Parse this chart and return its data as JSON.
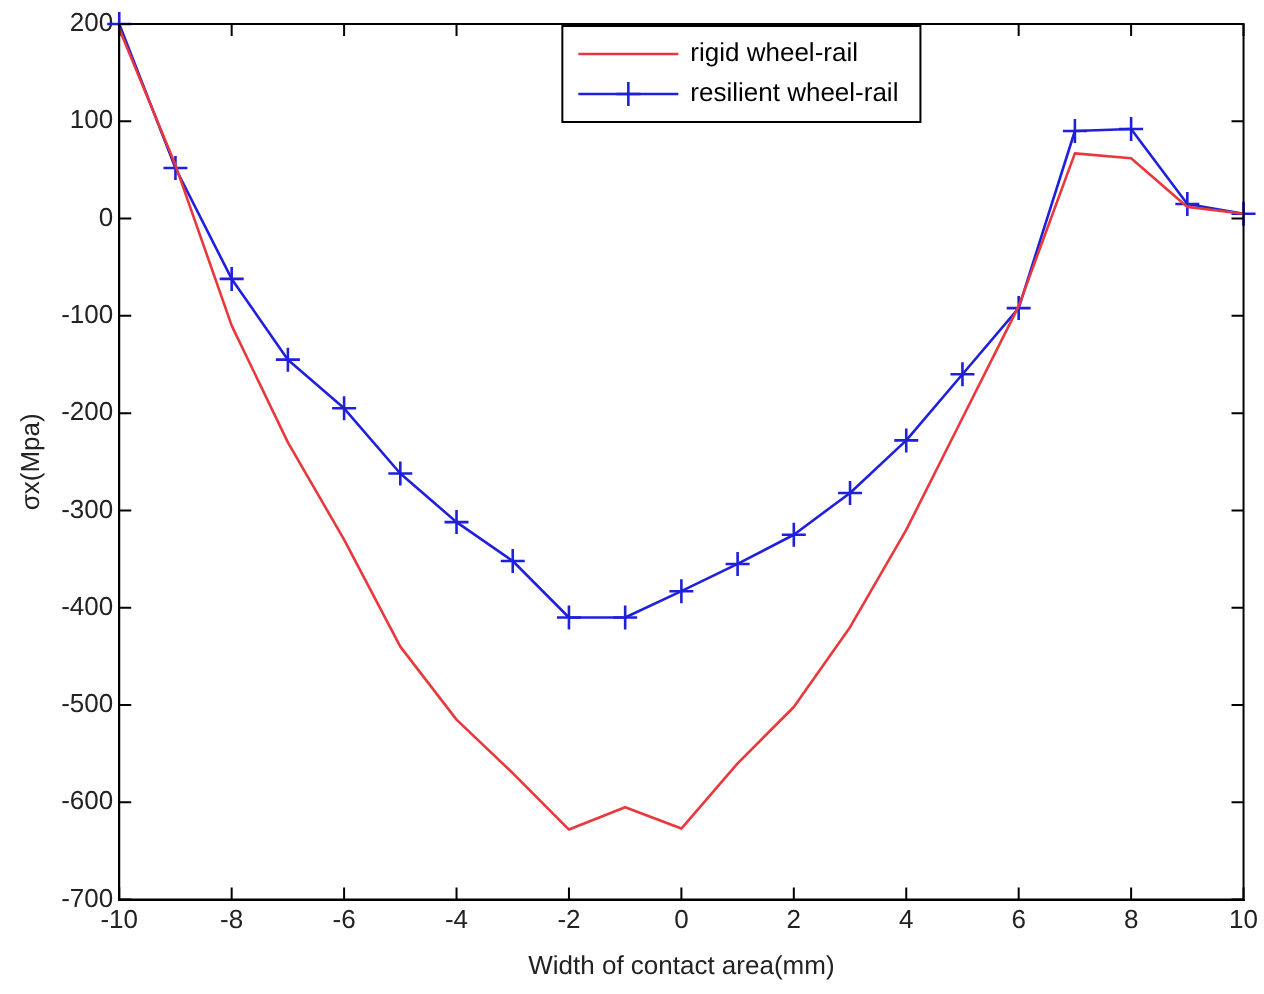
{
  "chart_data": {
    "type": "line",
    "xlabel": "Width of contact area(mm)",
    "ylabel": "σx(Mpa)",
    "x": [
      -10,
      -9,
      -8,
      -7,
      -6,
      -5,
      -4,
      -3,
      -2,
      -1,
      0,
      1,
      2,
      3,
      4,
      5,
      6,
      7,
      8,
      9,
      10
    ],
    "series": [
      {
        "name": "rigid wheel-rail",
        "color": "#e8383d",
        "marker": "none",
        "values": [
          195,
          55,
          -110,
          -230,
          -330,
          -440,
          -515,
          -570,
          -628,
          -605,
          -627,
          -560,
          -502,
          -420,
          -320,
          -205,
          -90,
          67,
          62,
          12,
          5
        ]
      },
      {
        "name": "resilient wheel-rail",
        "color": "#1f1fdc",
        "marker": "cross",
        "values": [
          200,
          52,
          -62,
          -145,
          -195,
          -262,
          -312,
          -352,
          -410,
          -410,
          -383,
          -355,
          -325,
          -282,
          -228,
          -160,
          -92,
          90,
          92,
          15,
          5
        ]
      }
    ],
    "xlim": [
      -10,
      10
    ],
    "xticks": [
      -10,
      -8,
      -6,
      -4,
      -2,
      0,
      2,
      4,
      6,
      8,
      10
    ],
    "ylim": [
      -700,
      200
    ],
    "yticks": [
      -700,
      -600,
      -500,
      -400,
      -300,
      -200,
      -100,
      0,
      100,
      200
    ],
    "grid": false,
    "legend": "top",
    "line_style": "solid"
  }
}
